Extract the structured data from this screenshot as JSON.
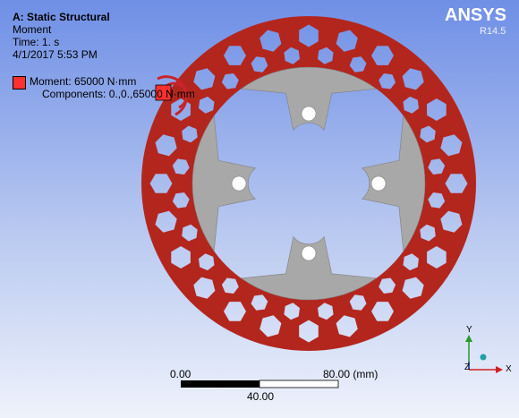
{
  "header": {
    "title": "A: Static Structural",
    "result": "Moment",
    "time": "Time: 1. s",
    "date": "4/1/2017 5:53 PM"
  },
  "legend": {
    "label": "Moment: 65000 N·mm",
    "components": "Components: 0.,0.,65000 N·mm"
  },
  "brand": {
    "name": "ANSYS",
    "version": "R14.5"
  },
  "scale": {
    "start": "0.00",
    "end": "80.00 (mm)",
    "middle": "40.00"
  },
  "triad": {
    "y": "Y",
    "x": "X",
    "z": "Z"
  }
}
